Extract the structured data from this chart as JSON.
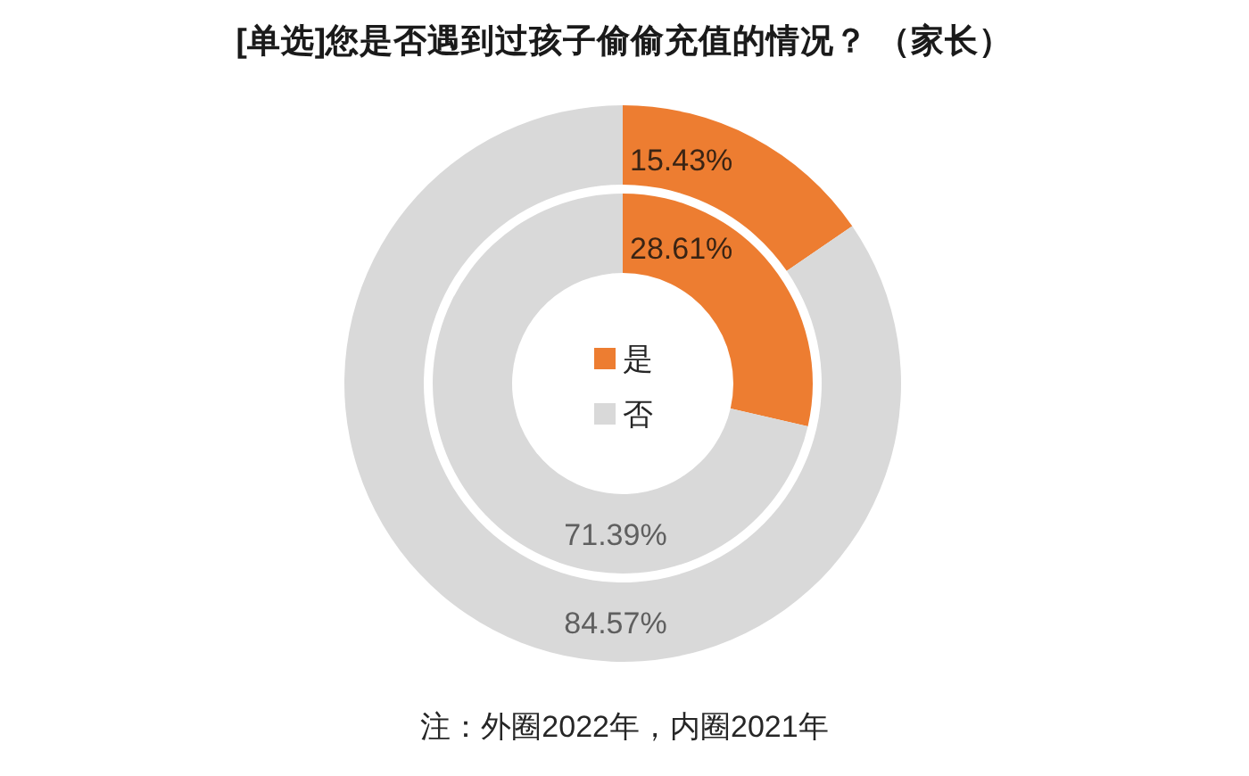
{
  "chart_data": {
    "type": "donut",
    "title": "[单选]您是否遇到过孩子偷偷充值的情况？ （家长）",
    "categories": [
      "是",
      "否"
    ],
    "series": [
      {
        "values": [
          15.43,
          84.57
        ],
        "colors": [
          "#ed7d31",
          "#d9d9d9"
        ],
        "value_labels": [
          "15.43%",
          "84.57%"
        ]
      },
      {
        "values": [
          28.61,
          71.39
        ],
        "colors": [
          "#ed7d31",
          "#d9d9d9"
        ],
        "value_labels": [
          "28.61%",
          "71.39%"
        ]
      }
    ],
    "legend": "center",
    "annotations": [
      "注：外圈2022年，内圈2021年"
    ]
  }
}
